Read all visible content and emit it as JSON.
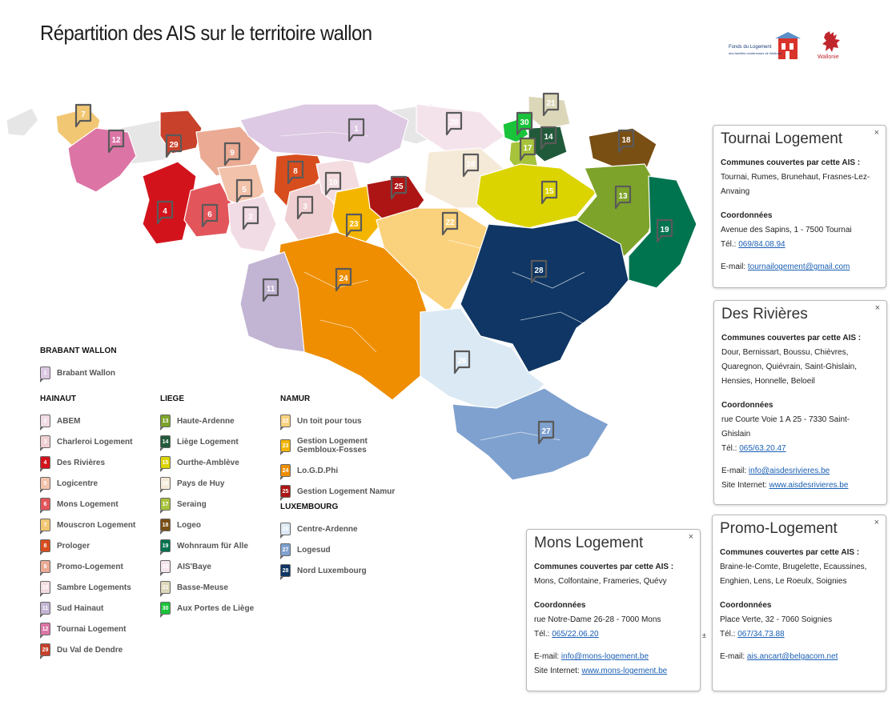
{
  "title": "Répartition des AIS sur le territoire wallon",
  "logos": {
    "fonds_line1": "Fonds du Logement",
    "fonds_line2": "des familles nombreuses de Wallonie",
    "wallonie": "Wallonie"
  },
  "colors": {
    "ais1": "#ddc9e3",
    "ais2": "#f1dbe4",
    "ais3": "#efcfd2",
    "ais4": "#d3131c",
    "ais5": "#f2c2aa",
    "ais6": "#e2565b",
    "ais7": "#f2c774",
    "ais8": "#d84d1e",
    "ais9": "#eaaa93",
    "ais10": "#f3dde1",
    "ais11": "#c2b4d3",
    "ais12": "#dc75a6",
    "ais13": "#7da32a",
    "ais14": "#215a3a",
    "ais15": "#dcd400",
    "ais16": "#f5ead8",
    "ais17": "#a7c33b",
    "ais18": "#7a4f14",
    "ais19": "#00734f",
    "ais20": "#f5e3ec",
    "ais21": "#dcd7b9",
    "ais22": "#fad27d",
    "ais23": "#f4b500",
    "ais24": "#ee8e00",
    "ais25": "#ad1515",
    "ais26": "#dbe9f4",
    "ais27": "#7fa1cf",
    "ais28": "#0f3664",
    "ais29": "#c8412a",
    "ais30": "#19c43a",
    "unassigned": "#e6e6e6"
  },
  "map_labels": [
    {
      "n": "1"
    },
    {
      "n": "2"
    },
    {
      "n": "3"
    },
    {
      "n": "4"
    },
    {
      "n": "5"
    },
    {
      "n": "6"
    },
    {
      "n": "7"
    },
    {
      "n": "8"
    },
    {
      "n": "9"
    },
    {
      "n": "10"
    },
    {
      "n": "11"
    },
    {
      "n": "12"
    },
    {
      "n": "13"
    },
    {
      "n": "14"
    },
    {
      "n": "15"
    },
    {
      "n": "16"
    },
    {
      "n": "17"
    },
    {
      "n": "18"
    },
    {
      "n": "19"
    },
    {
      "n": "20"
    },
    {
      "n": "21"
    },
    {
      "n": "22"
    },
    {
      "n": "23"
    },
    {
      "n": "24"
    },
    {
      "n": "25"
    },
    {
      "n": "26"
    },
    {
      "n": "27"
    },
    {
      "n": "28"
    },
    {
      "n": "29"
    },
    {
      "n": "30"
    }
  ],
  "legend": {
    "brabant": {
      "head": "BRABANT WALLON",
      "items": [
        {
          "n": "1",
          "label": "Brabant Wallon",
          "color": "#ddc9e3"
        }
      ]
    },
    "hainaut": {
      "head": "HAINAUT",
      "items": [
        {
          "n": "2",
          "label": "ABEM",
          "color": "#f1dbe4"
        },
        {
          "n": "3",
          "label": "Charleroi Logement",
          "color": "#efcfd2"
        },
        {
          "n": "4",
          "label": "Des Rivières",
          "color": "#d3131c"
        },
        {
          "n": "5",
          "label": "Logicentre",
          "color": "#f2c2aa"
        },
        {
          "n": "6",
          "label": "Mons Logement",
          "color": "#e2565b"
        },
        {
          "n": "7",
          "label": "Mouscron Logement",
          "color": "#f2c774"
        },
        {
          "n": "8",
          "label": "Prologer",
          "color": "#d84d1e"
        },
        {
          "n": "9",
          "label": "Promo-Logement",
          "color": "#eaaa93"
        },
        {
          "n": "10",
          "label": "Sambre Logements",
          "color": "#f3dde1"
        },
        {
          "n": "11",
          "label": "Sud Hainaut",
          "color": "#c2b4d3"
        },
        {
          "n": "12",
          "label": "Tournai Logement",
          "color": "#dc75a6"
        },
        {
          "n": "29",
          "label": "Du Val de Dendre",
          "color": "#c8412a"
        }
      ]
    },
    "liege": {
      "head": "LIEGE",
      "items": [
        {
          "n": "13",
          "label": "Haute-Ardenne",
          "color": "#7da32a"
        },
        {
          "n": "14",
          "label": "Liège Logement",
          "color": "#215a3a"
        },
        {
          "n": "15",
          "label": "Ourthe-Amblève",
          "color": "#dcd400"
        },
        {
          "n": "16",
          "label": "Pays de Huy",
          "color": "#f5ead8"
        },
        {
          "n": "17",
          "label": "Seraing",
          "color": "#a7c33b"
        },
        {
          "n": "18",
          "label": "Logeo",
          "color": "#7a4f14"
        },
        {
          "n": "19",
          "label": "Wohnraum für Alle",
          "color": "#00734f"
        },
        {
          "n": "20",
          "label": "AIS'Baye",
          "color": "#f5e3ec"
        },
        {
          "n": "21",
          "label": "Basse-Meuse",
          "color": "#dcd7b9"
        },
        {
          "n": "30",
          "label": "Aux Portes de Liège",
          "color": "#19c43a"
        }
      ]
    },
    "namur": {
      "head": "NAMUR",
      "items": [
        {
          "n": "22",
          "label": "Un toit pour tous",
          "color": "#fad27d"
        },
        {
          "n": "23",
          "label": "Gestion Logement Gembloux-Fosses",
          "color": "#f4b500"
        },
        {
          "n": "24",
          "label": "Lo.G.D.Phi",
          "color": "#ee8e00"
        },
        {
          "n": "25",
          "label": "Gestion Logement Namur",
          "color": "#ad1515"
        }
      ]
    },
    "luxembourg": {
      "head": "LUXEMBOURG",
      "items": [
        {
          "n": "26",
          "label": "Centre-Ardenne",
          "color": "#dbe9f4"
        },
        {
          "n": "27",
          "label": "Logesud",
          "color": "#7fa1cf"
        },
        {
          "n": "28",
          "label": "Nord Luxembourg",
          "color": "#0f3664"
        }
      ]
    }
  },
  "popups": {
    "tournai": {
      "title": "Tournai Logement",
      "communes_head": "Communes couvertes par cette AIS :",
      "communes": "Tournai, Rumes, Brunehaut, Frasnes-Lez-Anvaing",
      "coord_head": "Coordonnées",
      "address": "Avenue des Sapins, 1 - 7500 Tournai",
      "tel_label": "Tél.: ",
      "tel": "069/84.08.94",
      "email_label": "E-mail: ",
      "email": "tournailogement@gmail.com"
    },
    "rivieres": {
      "title": "Des Rivières",
      "communes_head": "Communes couvertes par cette AIS :",
      "communes": "Dour, Bernissart, Boussu, Chièvres, Quaregnon, Quiévrain, Saint-Ghislain, Hensies, Honnelle, Beloeil",
      "coord_head": "Coordonnées",
      "address": "rue Courte Voie 1 A 25 - 7330 Saint-Ghislain",
      "tel_label": "Tél.: ",
      "tel": "065/63.20.47",
      "email_label": "E-mail: ",
      "email": "info@aisdesrivieres.be",
      "web_label": "Site Internet: ",
      "web": "www.aisdesrivieres.be"
    },
    "mons": {
      "title": "Mons Logement",
      "communes_head": "Communes couvertes par cette AIS :",
      "communes": "Mons, Colfontaine, Frameries, Quévy",
      "coord_head": "Coordonnées",
      "address": "rue Notre-Dame 26-28 - 7000 Mons",
      "tel_label": "Tél.: ",
      "tel": "065/22.06.20",
      "email_label": "E-mail: ",
      "email": "info@mons-logement.be",
      "web_label": "Site Internet: ",
      "web": "www.mons-logement.be"
    },
    "promo": {
      "title": "Promo-Logement",
      "communes_head": "Communes couvertes par cette AIS :",
      "communes": "Braine-le-Comte, Brugelette, Ecaussines, Enghien, Lens, Le Roeulx, Soignies",
      "coord_head": "Coordonnées",
      "address": "Place Verte, 32 - 7060 Soignies",
      "tel_label": "Tél.: ",
      "tel": "067/34.73.88",
      "email_label": "E-mail: ",
      "email": "ais.ancart@belgacom.net"
    },
    "close_glyph": "×"
  },
  "stray_mark": "±"
}
